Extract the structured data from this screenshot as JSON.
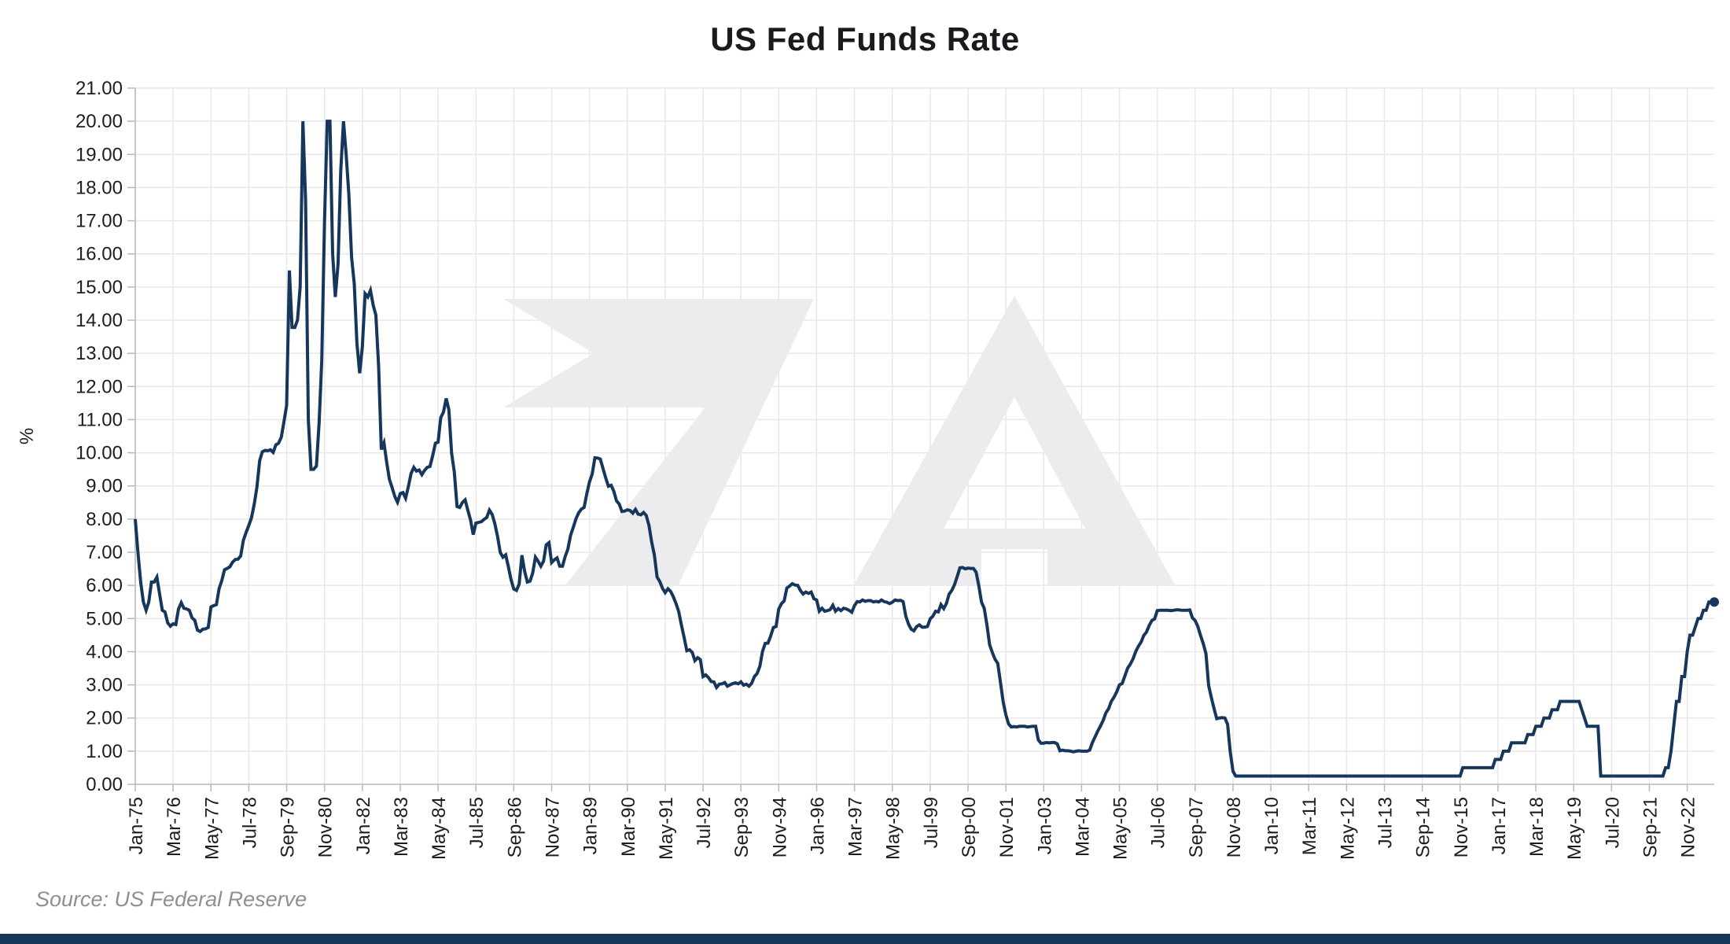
{
  "title": "US Fed Funds Rate",
  "source": "Source: US Federal Reserve",
  "colors": {
    "text": "#1d1d22",
    "grid": "#e8e8ea",
    "axis": "#b8b8bc",
    "watermark": "#ececef",
    "source_text": "#8f8f93",
    "footer_bar": "#16365c"
  },
  "y_axis": {
    "label": "%",
    "min": 0,
    "max": 21,
    "step": 1,
    "tick_labels": [
      "0.00",
      "1.00",
      "2.00",
      "3.00",
      "4.00",
      "5.00",
      "6.00",
      "7.00",
      "8.00",
      "9.00",
      "10.00",
      "11.00",
      "12.00",
      "13.00",
      "14.00",
      "15.00",
      "16.00",
      "17.00",
      "18.00",
      "19.00",
      "20.00",
      "21.00"
    ]
  },
  "x_axis": {
    "tick_interval_months": 14,
    "tick_labels": [
      "Jan-75",
      "Mar-76",
      "May-77",
      "Jul-78",
      "Sep-79",
      "Nov-80",
      "Jan-82",
      "Mar-83",
      "May-84",
      "Jul-85",
      "Sep-86",
      "Nov-87",
      "Jan-89",
      "Mar-90",
      "May-91",
      "Jul-92",
      "Sep-93",
      "Nov-94",
      "Jan-96",
      "Mar-97",
      "May-98",
      "Jul-99",
      "Sep-00",
      "Nov-01",
      "Jan-03",
      "Mar-04",
      "May-05",
      "Jul-06",
      "Sep-07",
      "Nov-08",
      "Jan-10",
      "Mar-11",
      "May-12",
      "Jul-13",
      "Sep-14",
      "Nov-15",
      "Jan-17",
      "Mar-18",
      "May-19",
      "Jul-20",
      "Sep-21",
      "Nov-22"
    ]
  },
  "watermark": {
    "name": "brand-logo-7A"
  },
  "chart_data": {
    "type": "line",
    "series_name": "US Fed Funds Rate",
    "units": "%",
    "frequency": "monthly",
    "start": "1975-01",
    "end": "2023-09",
    "ylim": [
      0,
      21
    ],
    "grid": true,
    "line_color": "#16365c",
    "values": [
      8.0,
      7.0,
      6.1,
      5.5,
      5.25,
      5.5,
      6.1,
      6.1,
      6.25,
      5.75,
      5.25,
      5.2,
      4.87,
      4.77,
      4.84,
      4.82,
      5.29,
      5.48,
      5.31,
      5.29,
      5.25,
      5.02,
      4.95,
      4.65,
      4.61,
      4.68,
      4.69,
      4.73,
      5.35,
      5.39,
      5.42,
      5.9,
      6.14,
      6.47,
      6.51,
      6.56,
      6.7,
      6.78,
      6.79,
      6.89,
      7.36,
      7.6,
      7.81,
      8.04,
      8.45,
      8.96,
      9.76,
      10.03,
      10.07,
      10.06,
      10.09,
      10.01,
      10.24,
      10.29,
      10.47,
      10.94,
      11.43,
      15.5,
      13.78,
      13.78,
      14.0,
      15.0,
      20.0,
      17.6,
      11.0,
      9.5,
      9.5,
      9.6,
      10.9,
      12.8,
      17.0,
      20.0,
      20.0,
      16.0,
      14.7,
      15.7,
      18.5,
      20.0,
      19.0,
      17.8,
      15.9,
      15.1,
      13.3,
      12.4,
      13.2,
      14.8,
      14.7,
      14.9,
      14.45,
      14.15,
      12.6,
      10.1,
      10.3,
      9.7,
      9.2,
      8.95,
      8.68,
      8.51,
      8.77,
      8.8,
      8.63,
      8.98,
      9.37,
      9.56,
      9.45,
      9.48,
      9.34,
      9.47,
      9.56,
      9.59,
      9.91,
      10.29,
      10.32,
      11.06,
      11.23,
      11.64,
      11.3,
      9.99,
      9.43,
      8.38,
      8.35,
      8.5,
      8.58,
      8.27,
      7.97,
      7.53,
      7.88,
      7.9,
      7.92,
      7.99,
      8.05,
      8.27,
      8.14,
      7.86,
      7.48,
      6.99,
      6.85,
      6.92,
      6.56,
      6.17,
      5.89,
      5.85,
      6.04,
      6.91,
      6.43,
      6.1,
      6.13,
      6.37,
      6.85,
      6.73,
      6.58,
      6.73,
      7.22,
      7.29,
      6.69,
      6.77,
      6.83,
      6.58,
      6.58,
      6.87,
      7.09,
      7.51,
      7.75,
      8.01,
      8.19,
      8.3,
      8.35,
      8.76,
      9.12,
      9.36,
      9.85,
      9.84,
      9.81,
      9.53,
      9.24,
      8.99,
      9.02,
      8.84,
      8.55,
      8.45,
      8.23,
      8.24,
      8.28,
      8.26,
      8.18,
      8.29,
      8.15,
      8.13,
      8.2,
      8.11,
      7.81,
      7.31,
      6.91,
      6.25,
      6.12,
      5.91,
      5.78,
      5.9,
      5.82,
      5.66,
      5.45,
      5.21,
      4.81,
      4.43,
      4.03,
      4.06,
      3.98,
      3.73,
      3.82,
      3.76,
      3.25,
      3.3,
      3.22,
      3.1,
      3.09,
      2.92,
      3.02,
      3.03,
      3.07,
      2.96,
      3.0,
      3.04,
      3.06,
      3.03,
      3.09,
      2.99,
      3.02,
      2.96,
      3.05,
      3.25,
      3.34,
      3.56,
      4.01,
      4.25,
      4.26,
      4.47,
      4.73,
      4.76,
      5.29,
      5.45,
      5.53,
      5.92,
      5.98,
      6.05,
      6.01,
      6.0,
      5.85,
      5.74,
      5.8,
      5.76,
      5.8,
      5.6,
      5.56,
      5.22,
      5.31,
      5.22,
      5.24,
      5.27,
      5.4,
      5.22,
      5.3,
      5.24,
      5.31,
      5.29,
      5.25,
      5.19,
      5.39,
      5.51,
      5.5,
      5.56,
      5.52,
      5.54,
      5.54,
      5.5,
      5.52,
      5.5,
      5.56,
      5.51,
      5.49,
      5.45,
      5.49,
      5.56,
      5.54,
      5.55,
      5.51,
      5.07,
      4.83,
      4.68,
      4.63,
      4.76,
      4.81,
      4.74,
      4.74,
      4.76,
      4.99,
      5.07,
      5.22,
      5.2,
      5.42,
      5.3,
      5.45,
      5.73,
      5.85,
      6.02,
      6.27,
      6.53,
      6.54,
      6.5,
      6.52,
      6.51,
      6.51,
      6.4,
      5.98,
      5.49,
      5.31,
      4.8,
      4.21,
      3.97,
      3.77,
      3.65,
      3.07,
      2.49,
      2.09,
      1.82,
      1.73,
      1.74,
      1.73,
      1.75,
      1.75,
      1.75,
      1.73,
      1.74,
      1.75,
      1.75,
      1.34,
      1.24,
      1.24,
      1.26,
      1.25,
      1.26,
      1.26,
      1.22,
      1.01,
      1.03,
      1.01,
      1.01,
      1.0,
      0.98,
      1.0,
      1.01,
      1.0,
      1.0,
      1.0,
      1.03,
      1.26,
      1.43,
      1.61,
      1.76,
      1.93,
      2.16,
      2.28,
      2.5,
      2.63,
      2.79,
      3.0,
      3.04,
      3.26,
      3.5,
      3.62,
      3.78,
      4.0,
      4.16,
      4.29,
      4.49,
      4.59,
      4.79,
      4.94,
      4.99,
      5.24,
      5.25,
      5.25,
      5.25,
      5.25,
      5.24,
      5.25,
      5.26,
      5.26,
      5.25,
      5.25,
      5.25,
      5.26,
      5.02,
      4.94,
      4.76,
      4.49,
      4.24,
      3.94,
      2.98,
      2.61,
      2.28,
      1.98,
      2.0,
      2.01,
      2.0,
      1.81,
      0.97,
      0.39,
      0.25,
      0.25,
      0.25,
      0.25,
      0.25,
      0.25,
      0.25,
      0.25,
      0.25,
      0.25,
      0.25,
      0.25,
      0.25,
      0.25,
      0.25,
      0.25,
      0.25,
      0.25,
      0.25,
      0.25,
      0.25,
      0.25,
      0.25,
      0.25,
      0.25,
      0.25,
      0.25,
      0.25,
      0.25,
      0.25,
      0.25,
      0.25,
      0.25,
      0.25,
      0.25,
      0.25,
      0.25,
      0.25,
      0.25,
      0.25,
      0.25,
      0.25,
      0.25,
      0.25,
      0.25,
      0.25,
      0.25,
      0.25,
      0.25,
      0.25,
      0.25,
      0.25,
      0.25,
      0.25,
      0.25,
      0.25,
      0.25,
      0.25,
      0.25,
      0.25,
      0.25,
      0.25,
      0.25,
      0.25,
      0.25,
      0.25,
      0.25,
      0.25,
      0.25,
      0.25,
      0.25,
      0.25,
      0.25,
      0.25,
      0.25,
      0.25,
      0.25,
      0.25,
      0.25,
      0.25,
      0.25,
      0.25,
      0.25,
      0.25,
      0.5,
      0.5,
      0.5,
      0.5,
      0.5,
      0.5,
      0.5,
      0.5,
      0.5,
      0.5,
      0.5,
      0.5,
      0.75,
      0.75,
      0.75,
      1.0,
      1.0,
      1.0,
      1.25,
      1.25,
      1.25,
      1.25,
      1.25,
      1.25,
      1.5,
      1.5,
      1.5,
      1.75,
      1.75,
      1.75,
      2.0,
      2.0,
      2.0,
      2.25,
      2.25,
      2.25,
      2.5,
      2.5,
      2.5,
      2.5,
      2.5,
      2.5,
      2.5,
      2.5,
      2.25,
      2.0,
      1.75,
      1.75,
      1.75,
      1.75,
      1.75,
      0.25,
      0.25,
      0.25,
      0.25,
      0.25,
      0.25,
      0.25,
      0.25,
      0.25,
      0.25,
      0.25,
      0.25,
      0.25,
      0.25,
      0.25,
      0.25,
      0.25,
      0.25,
      0.25,
      0.25,
      0.25,
      0.25,
      0.25,
      0.25,
      0.5,
      0.5,
      1.0,
      1.75,
      2.5,
      2.5,
      3.25,
      3.25,
      4.0,
      4.5,
      4.5,
      4.75,
      5.0,
      5.0,
      5.25,
      5.25,
      5.5,
      5.5,
      5.5
    ]
  }
}
